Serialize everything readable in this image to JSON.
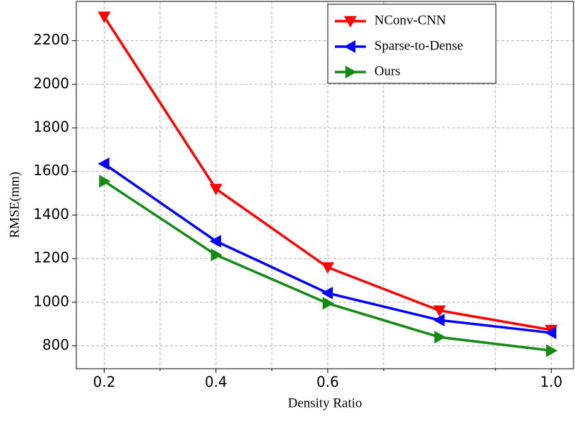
{
  "chart_data": {
    "type": "line",
    "x_label": "Density Ratio",
    "y_label": "RMSE(mm)",
    "x": [
      0.2,
      0.4,
      0.6,
      0.8,
      1.0
    ],
    "series": [
      {
        "name": "NConv-CNN",
        "color": "#ff0000",
        "marker": "triangle-down",
        "values": [
          2310,
          1520,
          1160,
          962,
          873
        ]
      },
      {
        "name": "Sparse-to-Dense",
        "color": "#0000ff",
        "marker": "triangle-left",
        "values": [
          1635,
          1280,
          1042,
          918,
          860
        ]
      },
      {
        "name": "Ours",
        "color": "#138a13",
        "marker": "triangle-right",
        "values": [
          1555,
          1217,
          995,
          840,
          778
        ]
      }
    ],
    "xlim": [
      0.15,
      1.04
    ],
    "ylim": [
      695,
      2380
    ],
    "xticks": [
      0.2,
      0.4,
      0.6,
      {
        "value": 1.0,
        "label": "1.0"
      }
    ],
    "xminorticks": [
      0.3,
      0.5,
      0.7,
      0.9
    ],
    "yticks": [
      800,
      1000,
      1200,
      1400,
      1600,
      1800,
      2000,
      2200
    ],
    "grid": true,
    "legend": "upper right"
  }
}
